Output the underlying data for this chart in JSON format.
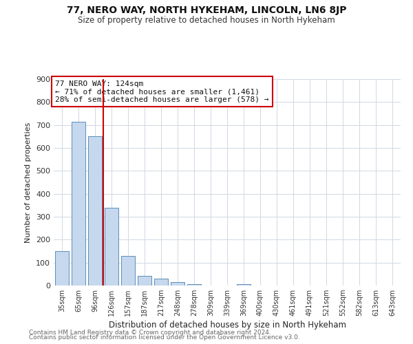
{
  "title": "77, NERO WAY, NORTH HYKEHAM, LINCOLN, LN6 8JP",
  "subtitle": "Size of property relative to detached houses in North Hykeham",
  "xlabel": "Distribution of detached houses by size in North Hykeham",
  "ylabel": "Number of detached properties",
  "bar_labels": [
    "35sqm",
    "65sqm",
    "96sqm",
    "126sqm",
    "157sqm",
    "187sqm",
    "217sqm",
    "248sqm",
    "278sqm",
    "309sqm",
    "339sqm",
    "369sqm",
    "400sqm",
    "430sqm",
    "461sqm",
    "491sqm",
    "521sqm",
    "552sqm",
    "582sqm",
    "613sqm",
    "643sqm"
  ],
  "bar_values": [
    150,
    715,
    650,
    340,
    128,
    42,
    30,
    14,
    7,
    0,
    0,
    5,
    0,
    0,
    0,
    0,
    0,
    0,
    0,
    0,
    0
  ],
  "bar_color": "#c5d8ed",
  "bar_edge_color": "#5b8db8",
  "property_line_x": 3,
  "property_line_color": "#cc0000",
  "ylim": [
    0,
    900
  ],
  "yticks": [
    0,
    100,
    200,
    300,
    400,
    500,
    600,
    700,
    800,
    900
  ],
  "annotation_title": "77 NERO WAY: 124sqm",
  "annotation_line1": "← 71% of detached houses are smaller (1,461)",
  "annotation_line2": "28% of semi-detached houses are larger (578) →",
  "annotation_box_color": "#cc0000",
  "footer1": "Contains HM Land Registry data © Crown copyright and database right 2024.",
  "footer2": "Contains public sector information licensed under the Open Government Licence v3.0.",
  "bg_color": "#ffffff",
  "grid_color": "#d0d8e4"
}
